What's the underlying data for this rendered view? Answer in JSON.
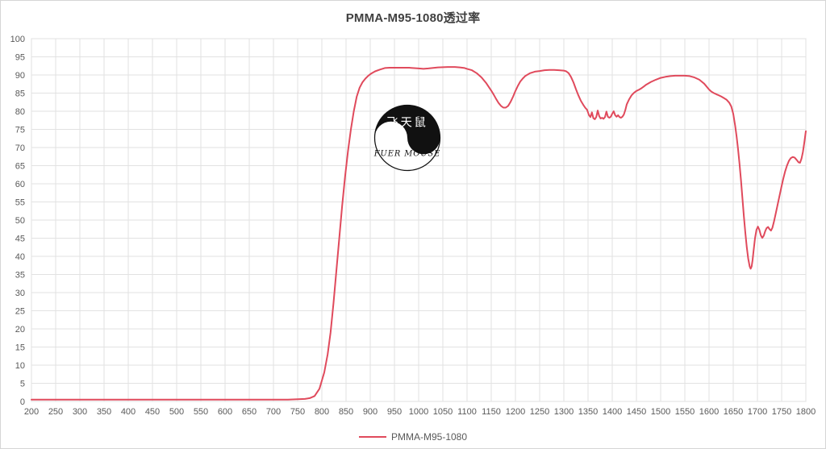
{
  "title": "PMMA-M95-1080透过率",
  "legend": {
    "label": "PMMA-M95-1080"
  },
  "logo": {
    "top_text": "飞天鼠",
    "bottom_text": "FUER MOUSE"
  },
  "colors": {
    "line": "#e04a5c",
    "grid": "#e2e2e2",
    "plot_border": "#dadada",
    "axis_text": "#595959",
    "title_text": "#404040",
    "logo_black": "#111111",
    "logo_white": "#ffffff"
  },
  "chart_data": {
    "type": "line",
    "title": "PMMA-M95-1080透过率",
    "xlabel": "",
    "ylabel": "",
    "xlim": [
      200,
      1800
    ],
    "ylim": [
      0,
      100
    ],
    "grid": true,
    "legend_position": "bottom",
    "x_ticks": [
      200,
      250,
      300,
      350,
      400,
      450,
      500,
      550,
      600,
      650,
      700,
      750,
      800,
      850,
      900,
      950,
      1000,
      1050,
      1100,
      1150,
      1200,
      1250,
      1300,
      1350,
      1400,
      1450,
      1500,
      1550,
      1600,
      1650,
      1700,
      1750,
      1800
    ],
    "y_ticks": [
      0,
      5,
      10,
      15,
      20,
      25,
      30,
      35,
      40,
      45,
      50,
      55,
      60,
      65,
      70,
      75,
      80,
      85,
      90,
      95,
      100
    ],
    "series": [
      {
        "name": "PMMA-M95-1080",
        "color": "#e04a5c",
        "points": [
          [
            200,
            0.5
          ],
          [
            300,
            0.5
          ],
          [
            400,
            0.5
          ],
          [
            500,
            0.5
          ],
          [
            600,
            0.5
          ],
          [
            650,
            0.5
          ],
          [
            700,
            0.5
          ],
          [
            730,
            0.5
          ],
          [
            750,
            0.6
          ],
          [
            765,
            0.7
          ],
          [
            775,
            0.9
          ],
          [
            785,
            1.5
          ],
          [
            795,
            3.5
          ],
          [
            805,
            8
          ],
          [
            812,
            13
          ],
          [
            818,
            19
          ],
          [
            824,
            27
          ],
          [
            830,
            36
          ],
          [
            836,
            45
          ],
          [
            842,
            54
          ],
          [
            848,
            62
          ],
          [
            854,
            69
          ],
          [
            860,
            75
          ],
          [
            866,
            80
          ],
          [
            872,
            84
          ],
          [
            878,
            86.5
          ],
          [
            884,
            88
          ],
          [
            890,
            89
          ],
          [
            896,
            89.8
          ],
          [
            902,
            90.4
          ],
          [
            910,
            91
          ],
          [
            920,
            91.5
          ],
          [
            930,
            91.9
          ],
          [
            940,
            92
          ],
          [
            950,
            92
          ],
          [
            965,
            92
          ],
          [
            980,
            92
          ],
          [
            1000,
            91.8
          ],
          [
            1010,
            91.7
          ],
          [
            1020,
            91.8
          ],
          [
            1040,
            92.1
          ],
          [
            1060,
            92.2
          ],
          [
            1075,
            92.2
          ],
          [
            1085,
            92.1
          ],
          [
            1095,
            91.9
          ],
          [
            1100,
            91.7
          ],
          [
            1110,
            91.3
          ],
          [
            1120,
            90.5
          ],
          [
            1130,
            89.3
          ],
          [
            1140,
            87.7
          ],
          [
            1150,
            85.7
          ],
          [
            1155,
            84.6
          ],
          [
            1160,
            83.4
          ],
          [
            1165,
            82.3
          ],
          [
            1170,
            81.5
          ],
          [
            1175,
            81
          ],
          [
            1180,
            81
          ],
          [
            1185,
            81.5
          ],
          [
            1190,
            82.6
          ],
          [
            1195,
            84
          ],
          [
            1200,
            85.6
          ],
          [
            1205,
            87
          ],
          [
            1210,
            88.2
          ],
          [
            1215,
            89
          ],
          [
            1220,
            89.7
          ],
          [
            1230,
            90.5
          ],
          [
            1240,
            90.9
          ],
          [
            1250,
            91.1
          ],
          [
            1260,
            91.3
          ],
          [
            1270,
            91.4
          ],
          [
            1280,
            91.4
          ],
          [
            1290,
            91.3
          ],
          [
            1300,
            91.2
          ],
          [
            1305,
            91
          ],
          [
            1310,
            90.5
          ],
          [
            1315,
            89.4
          ],
          [
            1320,
            87.9
          ],
          [
            1325,
            86.1
          ],
          [
            1330,
            84.4
          ],
          [
            1335,
            82.9
          ],
          [
            1340,
            81.8
          ],
          [
            1344,
            81
          ],
          [
            1348,
            80.4
          ],
          [
            1352,
            78.9
          ],
          [
            1355,
            78.4
          ],
          [
            1358,
            79.7
          ],
          [
            1361,
            78.1
          ],
          [
            1364,
            77.8
          ],
          [
            1367,
            78.4
          ],
          [
            1370,
            80.2
          ],
          [
            1373,
            78.7
          ],
          [
            1376,
            78
          ],
          [
            1379,
            78.2
          ],
          [
            1382,
            77.9
          ],
          [
            1385,
            78.4
          ],
          [
            1388,
            79.9
          ],
          [
            1391,
            78.5
          ],
          [
            1394,
            78.2
          ],
          [
            1397,
            78.5
          ],
          [
            1400,
            79.3
          ],
          [
            1403,
            80
          ],
          [
            1406,
            78.9
          ],
          [
            1409,
            78.5
          ],
          [
            1412,
            78.9
          ],
          [
            1415,
            78.4
          ],
          [
            1418,
            78.2
          ],
          [
            1421,
            78.5
          ],
          [
            1424,
            79.1
          ],
          [
            1427,
            80.3
          ],
          [
            1430,
            81.9
          ],
          [
            1435,
            83.3
          ],
          [
            1440,
            84.4
          ],
          [
            1445,
            85.1
          ],
          [
            1450,
            85.6
          ],
          [
            1455,
            85.9
          ],
          [
            1460,
            86.3
          ],
          [
            1465,
            86.8
          ],
          [
            1470,
            87.3
          ],
          [
            1480,
            88.1
          ],
          [
            1490,
            88.7
          ],
          [
            1500,
            89.2
          ],
          [
            1510,
            89.5
          ],
          [
            1520,
            89.7
          ],
          [
            1530,
            89.8
          ],
          [
            1540,
            89.8
          ],
          [
            1550,
            89.8
          ],
          [
            1560,
            89.7
          ],
          [
            1570,
            89.3
          ],
          [
            1580,
            88.7
          ],
          [
            1590,
            87.6
          ],
          [
            1600,
            86
          ],
          [
            1605,
            85.4
          ],
          [
            1610,
            85
          ],
          [
            1615,
            84.7
          ],
          [
            1620,
            84.4
          ],
          [
            1625,
            84.1
          ],
          [
            1630,
            83.7
          ],
          [
            1636,
            83.2
          ],
          [
            1642,
            82.3
          ],
          [
            1646,
            81.3
          ],
          [
            1650,
            79.3
          ],
          [
            1654,
            76
          ],
          [
            1657,
            73
          ],
          [
            1660,
            69.5
          ],
          [
            1663,
            65.5
          ],
          [
            1666,
            61
          ],
          [
            1669,
            56
          ],
          [
            1672,
            51
          ],
          [
            1675,
            46.5
          ],
          [
            1678,
            42.5
          ],
          [
            1681,
            39.3
          ],
          [
            1684,
            37.2
          ],
          [
            1686,
            36.6
          ],
          [
            1688,
            37.2
          ],
          [
            1690,
            39
          ],
          [
            1692,
            41.5
          ],
          [
            1695,
            45
          ],
          [
            1698,
            47.3
          ],
          [
            1701,
            48.2
          ],
          [
            1704,
            47.3
          ],
          [
            1707,
            45.8
          ],
          [
            1710,
            45.1
          ],
          [
            1713,
            45.7
          ],
          [
            1716,
            46.9
          ],
          [
            1719,
            47.8
          ],
          [
            1722,
            48.1
          ],
          [
            1725,
            47.5
          ],
          [
            1728,
            47.1
          ],
          [
            1731,
            47.9
          ],
          [
            1734,
            49.5
          ],
          [
            1737,
            51.3
          ],
          [
            1741,
            53.8
          ],
          [
            1745,
            56.3
          ],
          [
            1749,
            58.8
          ],
          [
            1753,
            61.2
          ],
          [
            1757,
            63.3
          ],
          [
            1761,
            65
          ],
          [
            1765,
            66.3
          ],
          [
            1769,
            67.1
          ],
          [
            1773,
            67.4
          ],
          [
            1777,
            67.2
          ],
          [
            1781,
            66.6
          ],
          [
            1785,
            65.9
          ],
          [
            1788,
            65.8
          ],
          [
            1791,
            66.9
          ],
          [
            1794,
            68.8
          ],
          [
            1797,
            71.5
          ],
          [
            1800,
            74.5
          ]
        ]
      }
    ]
  }
}
